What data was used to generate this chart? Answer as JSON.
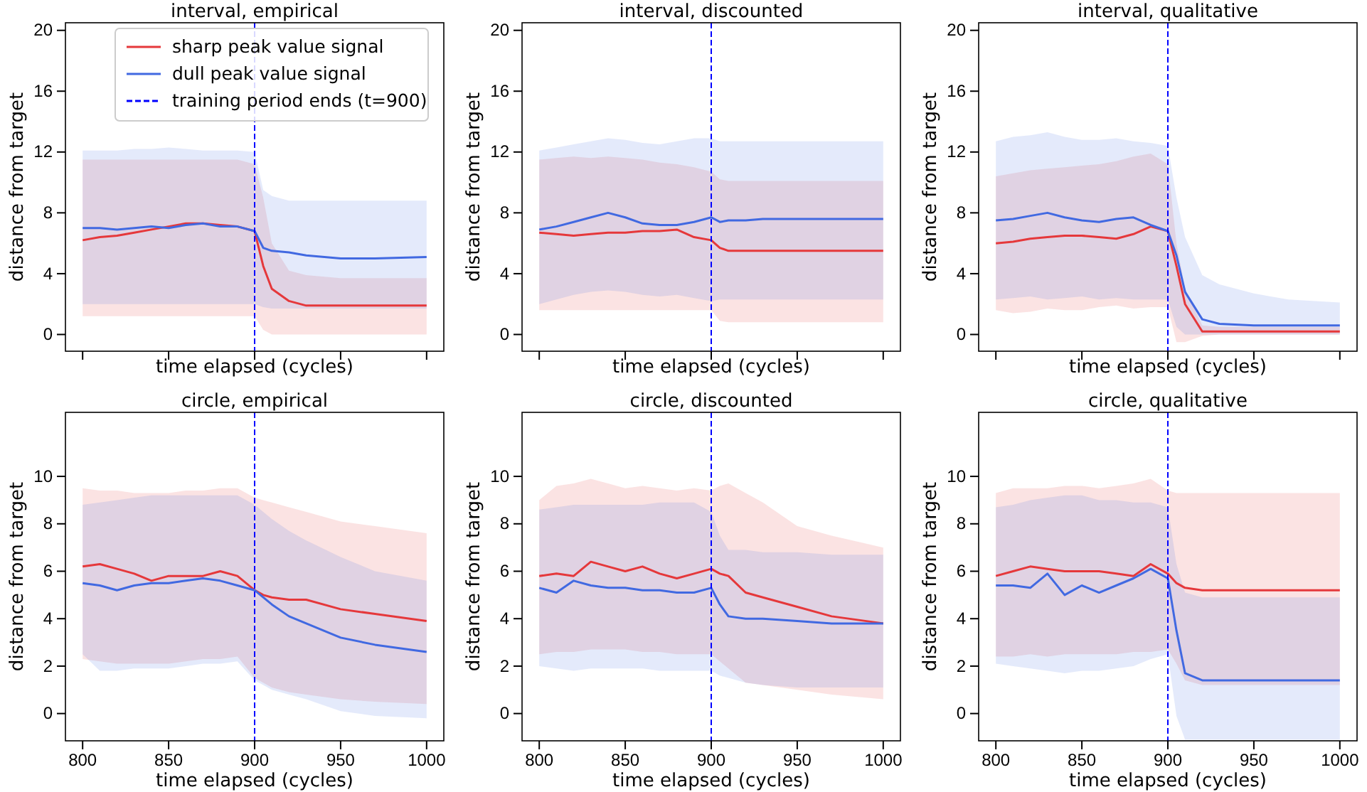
{
  "chart_data": [
    {
      "type": "line",
      "title": "interval, empirical",
      "xlabel": "time elapsed (cycles)",
      "ylabel": "distance from target",
      "x": [
        800,
        810,
        820,
        830,
        840,
        850,
        860,
        870,
        880,
        890,
        900,
        905,
        910,
        920,
        930,
        950,
        970,
        1000
      ],
      "xlim": [
        790,
        1010
      ],
      "xticks": [
        800,
        850,
        900,
        950,
        1000
      ],
      "ylim": [
        -1.1,
        20.5
      ],
      "yticks": [
        0,
        4,
        8,
        12,
        16,
        20
      ],
      "tick_labels": "y",
      "legend": "top",
      "ref_lines": [
        {
          "axis": "x",
          "value": 900,
          "label": "training period ends (t=900)",
          "color": "#0000ff",
          "line_style": "dashed"
        }
      ],
      "series": [
        {
          "name": "sharp peak value signal",
          "color": "#e5383b",
          "values": [
            6.2,
            6.4,
            6.5,
            6.7,
            6.9,
            7.1,
            7.3,
            7.3,
            7.2,
            7.1,
            6.8,
            4.5,
            3.0,
            2.2,
            1.9,
            1.9,
            1.9,
            1.9
          ],
          "lower": [
            1.2,
            1.2,
            1.2,
            1.2,
            1.2,
            1.2,
            1.2,
            1.2,
            1.2,
            1.2,
            1.2,
            0.3,
            0.0,
            0.0,
            0.0,
            0.0,
            0.0,
            0.0
          ],
          "upper": [
            11.5,
            11.5,
            11.5,
            11.5,
            11.5,
            11.5,
            11.5,
            11.5,
            11.5,
            11.5,
            11.2,
            9.0,
            6.0,
            4.2,
            3.9,
            3.7,
            3.7,
            3.7
          ]
        },
        {
          "name": "dull peak value signal",
          "color": "#4169e1",
          "values": [
            7.0,
            7.0,
            6.9,
            7.0,
            7.1,
            7.0,
            7.2,
            7.3,
            7.1,
            7.1,
            6.8,
            5.7,
            5.5,
            5.4,
            5.2,
            5.0,
            5.0,
            5.1
          ],
          "lower": [
            2.0,
            2.0,
            2.0,
            2.0,
            2.0,
            2.0,
            2.0,
            2.0,
            2.0,
            2.0,
            2.0,
            1.8,
            1.7,
            1.7,
            1.7,
            1.7,
            1.7,
            1.7
          ],
          "upper": [
            12.1,
            12.1,
            12.1,
            12.2,
            12.2,
            12.3,
            12.2,
            12.1,
            12.1,
            12.1,
            12.0,
            9.5,
            9.1,
            8.8,
            8.8,
            8.8,
            8.8,
            8.8
          ]
        }
      ]
    },
    {
      "type": "line",
      "title": "interval, discounted",
      "xlabel": "time elapsed (cycles)",
      "ylabel": "distance from target",
      "x": [
        800,
        810,
        820,
        830,
        840,
        850,
        860,
        870,
        880,
        890,
        900,
        905,
        910,
        920,
        930,
        950,
        970,
        1000
      ],
      "xlim": [
        790,
        1010
      ],
      "xticks": [
        800,
        850,
        900,
        950,
        1000
      ],
      "ylim": [
        -1.1,
        20.5
      ],
      "yticks": [
        0,
        4,
        8,
        12,
        16,
        20
      ],
      "tick_labels": "y",
      "ref_lines": [
        {
          "axis": "x",
          "value": 900,
          "color": "#0000ff",
          "line_style": "dashed"
        }
      ],
      "series": [
        {
          "color": "#e5383b",
          "values": [
            6.7,
            6.6,
            6.5,
            6.6,
            6.7,
            6.7,
            6.8,
            6.8,
            6.9,
            6.4,
            6.2,
            5.7,
            5.5,
            5.5,
            5.5,
            5.5,
            5.5,
            5.5
          ],
          "lower": [
            1.6,
            1.6,
            1.6,
            1.6,
            1.6,
            1.6,
            1.6,
            1.6,
            1.6,
            1.6,
            1.6,
            0.9,
            0.8,
            0.8,
            0.8,
            0.8,
            0.8,
            0.8
          ],
          "upper": [
            11.5,
            11.6,
            11.7,
            11.6,
            11.7,
            11.6,
            11.5,
            11.3,
            11.2,
            11.0,
            10.7,
            10.2,
            10.1,
            10.1,
            10.1,
            10.1,
            10.1,
            10.1
          ]
        },
        {
          "color": "#4169e1",
          "values": [
            6.9,
            7.1,
            7.4,
            7.7,
            8.0,
            7.7,
            7.3,
            7.2,
            7.2,
            7.4,
            7.7,
            7.4,
            7.5,
            7.5,
            7.6,
            7.6,
            7.6,
            7.6
          ],
          "lower": [
            2.0,
            2.3,
            2.6,
            2.8,
            2.9,
            2.8,
            2.6,
            2.5,
            2.6,
            2.4,
            2.2,
            2.3,
            2.3,
            2.3,
            2.3,
            2.3,
            2.3,
            2.3
          ],
          "upper": [
            12.1,
            12.3,
            12.5,
            12.7,
            12.9,
            12.8,
            12.6,
            12.5,
            12.7,
            12.9,
            12.9,
            12.7,
            12.7,
            12.7,
            12.7,
            12.7,
            12.7,
            12.7
          ]
        }
      ]
    },
    {
      "type": "line",
      "title": "interval, qualitative",
      "xlabel": "time elapsed (cycles)",
      "ylabel": "distance from target",
      "x": [
        800,
        810,
        820,
        830,
        840,
        850,
        860,
        870,
        880,
        890,
        900,
        905,
        910,
        920,
        930,
        950,
        970,
        1000
      ],
      "xlim": [
        790,
        1010
      ],
      "xticks": [
        800,
        850,
        900,
        950,
        1000
      ],
      "ylim": [
        -1.1,
        20.5
      ],
      "yticks": [
        0,
        4,
        8,
        12,
        16,
        20
      ],
      "tick_labels": "y",
      "ref_lines": [
        {
          "axis": "x",
          "value": 900,
          "color": "#0000ff",
          "line_style": "dashed"
        }
      ],
      "series": [
        {
          "color": "#e5383b",
          "values": [
            6.0,
            6.1,
            6.3,
            6.4,
            6.5,
            6.5,
            6.4,
            6.3,
            6.6,
            7.1,
            6.8,
            4.5,
            2.0,
            0.2,
            0.2,
            0.2,
            0.2,
            0.2
          ],
          "lower": [
            1.6,
            1.4,
            1.5,
            1.7,
            1.6,
            1.6,
            1.8,
            1.9,
            1.7,
            1.8,
            1.8,
            -0.5,
            -0.5,
            -0.1,
            0.0,
            0.0,
            0.0,
            0.0
          ],
          "upper": [
            10.4,
            10.6,
            10.8,
            10.9,
            11.0,
            11.1,
            11.2,
            11.4,
            11.7,
            11.9,
            11.2,
            6.0,
            3.0,
            0.6,
            0.5,
            0.5,
            0.5,
            0.5
          ]
        },
        {
          "color": "#4169e1",
          "values": [
            7.5,
            7.6,
            7.8,
            8.0,
            7.7,
            7.5,
            7.4,
            7.6,
            7.7,
            7.2,
            6.8,
            5.2,
            2.8,
            1.0,
            0.7,
            0.6,
            0.6,
            0.6
          ],
          "lower": [
            2.3,
            2.4,
            2.5,
            2.3,
            2.4,
            2.5,
            2.3,
            2.4,
            2.3,
            2.3,
            2.3,
            0.5,
            0.0,
            0.0,
            0.0,
            0.0,
            0.0,
            0.0
          ],
          "upper": [
            12.7,
            13.0,
            13.1,
            13.3,
            13.0,
            12.8,
            12.8,
            12.9,
            12.7,
            12.6,
            12.4,
            9.0,
            6.4,
            3.9,
            3.3,
            2.7,
            2.3,
            2.1
          ]
        }
      ]
    },
    {
      "type": "line",
      "title": "circle, empirical",
      "xlabel": "time elapsed (cycles)",
      "ylabel": "distance from target",
      "x": [
        800,
        810,
        820,
        830,
        840,
        850,
        860,
        870,
        880,
        890,
        900,
        905,
        910,
        920,
        930,
        950,
        970,
        1000
      ],
      "xlim": [
        790,
        1010
      ],
      "xticks": [
        800,
        850,
        900,
        950,
        1000
      ],
      "ylim": [
        -1.15,
        12.7
      ],
      "yticks": [
        0,
        2,
        4,
        6,
        8,
        10
      ],
      "ref_lines": [
        {
          "axis": "x",
          "value": 900,
          "color": "#0000ff",
          "line_style": "dashed"
        }
      ],
      "series": [
        {
          "color": "#e5383b",
          "values": [
            6.2,
            6.3,
            6.1,
            5.9,
            5.6,
            5.8,
            5.8,
            5.8,
            6.0,
            5.8,
            5.2,
            5.0,
            4.9,
            4.8,
            4.8,
            4.4,
            4.2,
            3.9
          ],
          "lower": [
            2.3,
            2.2,
            2.1,
            2.1,
            2.1,
            2.1,
            2.2,
            2.3,
            2.3,
            2.4,
            1.5,
            1.3,
            1.1,
            0.9,
            0.8,
            0.6,
            0.5,
            0.4
          ],
          "upper": [
            9.5,
            9.4,
            9.4,
            9.3,
            9.3,
            9.3,
            9.4,
            9.4,
            9.5,
            9.5,
            9.1,
            9.0,
            8.9,
            8.7,
            8.5,
            8.1,
            7.9,
            7.6
          ]
        },
        {
          "color": "#4169e1",
          "values": [
            5.5,
            5.4,
            5.2,
            5.4,
            5.5,
            5.5,
            5.6,
            5.7,
            5.6,
            5.4,
            5.2,
            4.9,
            4.6,
            4.1,
            3.8,
            3.2,
            2.9,
            2.6
          ],
          "lower": [
            2.5,
            1.8,
            1.8,
            1.9,
            1.9,
            1.9,
            2.0,
            2.1,
            2.1,
            2.2,
            1.4,
            1.2,
            1.0,
            0.8,
            0.6,
            0.1,
            -0.1,
            -0.2
          ],
          "upper": [
            8.8,
            8.9,
            9.0,
            9.1,
            9.2,
            9.2,
            9.2,
            9.2,
            9.2,
            9.2,
            8.8,
            8.5,
            8.2,
            7.7,
            7.3,
            6.6,
            6.0,
            5.6
          ]
        }
      ]
    },
    {
      "type": "line",
      "title": "circle, discounted",
      "xlabel": "time elapsed (cycles)",
      "ylabel": "distance from target",
      "x": [
        800,
        810,
        820,
        830,
        840,
        850,
        860,
        870,
        880,
        890,
        900,
        905,
        910,
        920,
        930,
        950,
        970,
        1000
      ],
      "xlim": [
        790,
        1010
      ],
      "xticks": [
        800,
        850,
        900,
        950,
        1000
      ],
      "ylim": [
        -1.15,
        12.7
      ],
      "yticks": [
        0,
        2,
        4,
        6,
        8,
        10
      ],
      "ref_lines": [
        {
          "axis": "x",
          "value": 900,
          "color": "#0000ff",
          "line_style": "dashed"
        }
      ],
      "series": [
        {
          "color": "#e5383b",
          "values": [
            5.8,
            5.9,
            5.8,
            6.4,
            6.2,
            6.0,
            6.2,
            5.9,
            5.7,
            5.9,
            6.1,
            5.9,
            5.8,
            5.1,
            4.9,
            4.5,
            4.1,
            3.8
          ],
          "lower": [
            2.5,
            2.6,
            2.6,
            2.7,
            2.7,
            2.7,
            2.6,
            2.6,
            2.5,
            2.5,
            2.5,
            2.2,
            1.9,
            1.3,
            1.2,
            1.0,
            0.8,
            0.6
          ],
          "upper": [
            9.0,
            9.6,
            9.7,
            9.9,
            9.7,
            9.5,
            9.6,
            9.5,
            9.4,
            9.5,
            9.4,
            9.6,
            9.7,
            9.3,
            8.9,
            7.9,
            7.5,
            7.0
          ]
        },
        {
          "color": "#4169e1",
          "values": [
            5.3,
            5.1,
            5.6,
            5.4,
            5.3,
            5.3,
            5.2,
            5.2,
            5.1,
            5.1,
            5.3,
            4.6,
            4.1,
            4.0,
            4.0,
            3.9,
            3.8,
            3.8
          ],
          "lower": [
            2.0,
            1.9,
            1.8,
            1.9,
            1.9,
            1.9,
            1.9,
            1.8,
            1.8,
            1.8,
            1.8,
            1.6,
            1.5,
            1.3,
            1.2,
            1.1,
            1.1,
            1.1
          ],
          "upper": [
            8.6,
            8.7,
            8.8,
            8.8,
            8.8,
            8.8,
            8.8,
            8.9,
            8.9,
            8.9,
            8.5,
            7.5,
            6.9,
            6.9,
            6.8,
            6.8,
            6.7,
            6.7
          ]
        }
      ]
    },
    {
      "type": "line",
      "title": "circle, qualitative",
      "xlabel": "time elapsed (cycles)",
      "ylabel": "distance from target",
      "x": [
        800,
        810,
        820,
        830,
        840,
        850,
        860,
        870,
        880,
        890,
        900,
        905,
        910,
        920,
        930,
        950,
        970,
        1000
      ],
      "xlim": [
        790,
        1010
      ],
      "xticks": [
        800,
        850,
        900,
        950,
        1000
      ],
      "ylim": [
        -1.15,
        12.7
      ],
      "yticks": [
        0,
        2,
        4,
        6,
        8,
        10
      ],
      "ref_lines": [
        {
          "axis": "x",
          "value": 900,
          "color": "#0000ff",
          "line_style": "dashed"
        }
      ],
      "series": [
        {
          "color": "#e5383b",
          "values": [
            5.8,
            6.0,
            6.2,
            6.1,
            6.0,
            6.0,
            6.0,
            5.9,
            5.8,
            6.3,
            5.9,
            5.5,
            5.3,
            5.2,
            5.2,
            5.2,
            5.2,
            5.2
          ],
          "lower": [
            2.4,
            2.4,
            2.5,
            2.4,
            2.5,
            2.5,
            2.5,
            2.5,
            2.6,
            2.6,
            2.7,
            2.1,
            1.4,
            1.2,
            1.2,
            1.2,
            1.2,
            1.2
          ],
          "upper": [
            9.3,
            9.5,
            9.5,
            9.5,
            9.6,
            9.6,
            9.5,
            9.6,
            9.7,
            9.9,
            9.4,
            9.3,
            9.3,
            9.3,
            9.3,
            9.3,
            9.3,
            9.3
          ]
        },
        {
          "color": "#4169e1",
          "values": [
            5.4,
            5.4,
            5.3,
            5.9,
            5.0,
            5.4,
            5.1,
            5.4,
            5.7,
            6.1,
            5.7,
            3.5,
            1.7,
            1.4,
            1.4,
            1.4,
            1.4,
            1.4
          ],
          "lower": [
            2.1,
            2.0,
            1.9,
            1.8,
            1.7,
            1.8,
            1.8,
            1.9,
            2.0,
            2.3,
            2.5,
            -0.1,
            -1.1,
            -1.1,
            -1.1,
            -1.1,
            -1.1,
            -1.1
          ],
          "upper": [
            8.7,
            8.8,
            9.0,
            9.1,
            9.2,
            9.2,
            9.0,
            9.0,
            8.9,
            8.9,
            8.7,
            6.3,
            5.1,
            4.9,
            4.9,
            4.9,
            4.9,
            4.9
          ]
        }
      ]
    }
  ]
}
